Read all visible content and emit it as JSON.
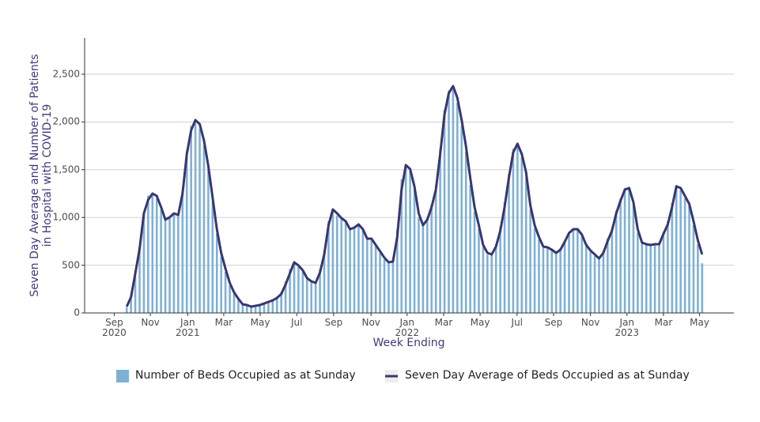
{
  "chart_data": {
    "type": "bar-line",
    "x_label": "Week Ending",
    "y_label": "Seven Day Average and Number of Patients\nin Hospital with COVID-19",
    "categories": [
      null,
      null,
      null,
      null,
      null,
      null,
      null,
      null,
      null,
      null,
      null,
      null,
      null,
      null,
      null,
      null,
      null,
      null,
      null,
      null,
      null,
      null,
      null,
      null,
      null,
      null,
      null,
      null,
      null,
      null,
      null,
      null,
      null,
      null,
      null,
      null,
      null,
      null,
      null,
      null,
      null,
      null,
      null,
      null,
      null,
      null,
      null,
      null,
      null,
      null,
      null,
      null,
      null,
      null,
      null,
      null,
      null,
      null,
      null,
      null,
      null,
      null,
      null,
      null,
      null,
      null,
      null,
      null,
      null,
      null,
      null,
      null,
      null,
      null,
      null,
      null,
      null,
      null,
      null,
      null,
      null,
      null,
      null,
      null,
      null,
      null,
      null,
      null,
      null,
      null,
      null,
      null,
      null,
      null,
      null,
      null,
      null,
      null,
      null,
      null,
      null,
      null,
      null,
      null,
      null,
      null,
      null,
      null,
      null,
      null,
      null,
      null,
      null,
      null,
      null,
      null,
      null,
      null,
      null,
      null,
      null,
      null,
      null,
      null,
      null,
      null,
      null,
      null,
      null,
      null,
      null,
      null,
      null,
      null,
      null
    ],
    "series": [
      {
        "name": "Number of Beds Occupied as at Sunday",
        "type": "bar",
        "color": "#7fb0d5",
        "values": [
          60,
          150,
          380,
          700,
          1060,
          1230,
          1230,
          1200,
          1080,
          990,
          1010,
          1050,
          1040,
          1280,
          1700,
          1960,
          1990,
          1930,
          1760,
          1500,
          1160,
          830,
          590,
          430,
          290,
          200,
          140,
          90,
          80,
          70,
          80,
          90,
          100,
          120,
          140,
          170,
          220,
          330,
          460,
          520,
          480,
          430,
          350,
          320,
          330,
          460,
          650,
          960,
          1060,
          1020,
          980,
          950,
          870,
          900,
          910,
          860,
          770,
          760,
          700,
          630,
          560,
          520,
          560,
          880,
          1400,
          1560,
          1480,
          1290,
          1000,
          920,
          1000,
          1140,
          1340,
          1720,
          2130,
          2330,
          2340,
          2200,
          1960,
          1690,
          1340,
          1060,
          880,
          690,
          610,
          620,
          720,
          900,
          1160,
          1460,
          1720,
          1760,
          1630,
          1420,
          1080,
          890,
          770,
          680,
          680,
          650,
          630,
          680,
          760,
          850,
          880,
          870,
          800,
          700,
          640,
          600,
          580,
          650,
          780,
          890,
          1070,
          1200,
          1310,
          1290,
          1120,
          840,
          730,
          710,
          710,
          720,
          730,
          850,
          960,
          1150,
          1340,
          1290,
          1200,
          1120,
          920,
          720,
          520
        ]
      },
      {
        "name": "Seven Day Average of Beds Occupied as at Sunday",
        "type": "line",
        "color": "#383670",
        "values": [
          66,
          165,
          414,
          670,
          1043,
          1184,
          1250,
          1225,
          1109,
          977,
          1002,
          1043,
          1026,
          1250,
          1664,
          1912,
          2020,
          1978,
          1805,
          1540,
          1209,
          877,
          629,
          464,
          315,
          215,
          149,
          91,
          83,
          66,
          75,
          83,
          99,
          116,
          132,
          157,
          199,
          298,
          414,
          530,
          497,
          447,
          364,
          331,
          315,
          422,
          613,
          919,
          1084,
          1043,
          993,
          960,
          877,
          894,
          927,
          877,
          778,
          778,
          712,
          646,
          579,
          530,
          538,
          795,
          1291,
          1548,
          1507,
          1325,
          1043,
          919,
          977,
          1109,
          1291,
          1664,
          2078,
          2301,
          2376,
          2252,
          2020,
          1747,
          1416,
          1109,
          919,
          712,
          629,
          613,
          695,
          861,
          1109,
          1416,
          1680,
          1772,
          1664,
          1474,
          1126,
          919,
          795,
          695,
          687,
          662,
          629,
          662,
          745,
          836,
          877,
          877,
          820,
          712,
          654,
          613,
          571,
          629,
          753,
          861,
          1043,
          1175,
          1291,
          1308,
          1159,
          877,
          737,
          720,
          712,
          720,
          720,
          828,
          927,
          1109,
          1325,
          1308,
          1225,
          1142,
          960,
          762,
          613
        ]
      }
    ],
    "xlim": [
      -9.8,
      141.4
    ],
    "xticks": [
      {
        "value": -2.9,
        "label": "Sep\n2020"
      },
      {
        "value": 5.5,
        "label": "Nov"
      },
      {
        "value": 14.2,
        "label": "Jan\n2021"
      },
      {
        "value": 22.6,
        "label": "Mar"
      },
      {
        "value": 31.1,
        "label": "May"
      },
      {
        "value": 39.6,
        "label": "Jul"
      },
      {
        "value": 48.2,
        "label": "Sep"
      },
      {
        "value": 56.9,
        "label": "Nov"
      },
      {
        "value": 65.3,
        "label": "Jan\n2022"
      },
      {
        "value": 73.8,
        "label": "Mar"
      },
      {
        "value": 82.3,
        "label": "May"
      },
      {
        "value": 90.9,
        "label": "Jul"
      },
      {
        "value": 99.4,
        "label": "Sep"
      },
      {
        "value": 108.0,
        "label": "Nov"
      },
      {
        "value": 116.5,
        "label": "Jan\n2023"
      },
      {
        "value": 125.0,
        "label": "Mar"
      },
      {
        "value": 133.4,
        "label": "May"
      }
    ],
    "ylim": [
      0,
      2880
    ],
    "yticks": [
      0,
      500,
      {
        "value": 1000,
        "label": "1,000"
      },
      {
        "value": 1500,
        "label": "1,500"
      },
      {
        "value": 2000,
        "label": "2,000"
      },
      {
        "value": 2500,
        "label": "2,500"
      }
    ],
    "grid": true
  }
}
